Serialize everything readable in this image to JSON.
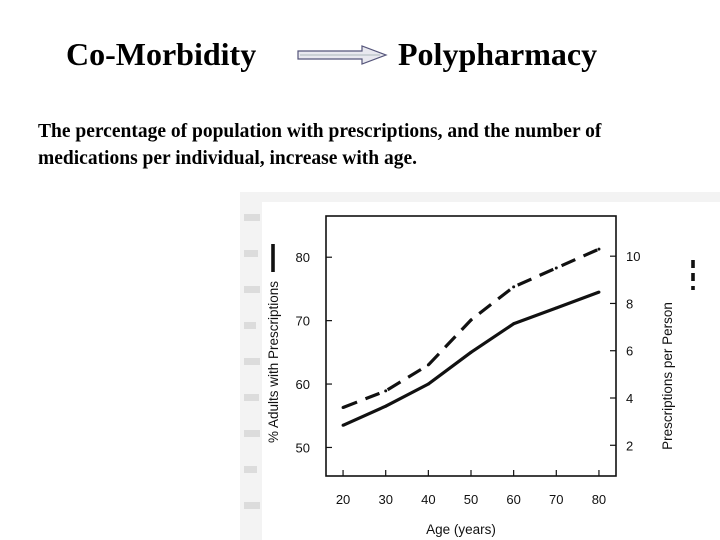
{
  "header": {
    "left_title": "Co-Morbidity",
    "right_title": "Polypharmacy",
    "arrow_icon": "right-arrow-icon"
  },
  "subtitle": "The percentage of population with prescriptions, and the number of medications per individual, increase with age.",
  "chart_data": {
    "type": "line",
    "x": [
      20,
      30,
      40,
      50,
      60,
      70,
      80
    ],
    "xlabel": "Age (years)",
    "xlim": [
      16,
      84
    ],
    "xticks": [
      "20",
      "30",
      "40",
      "50",
      "60",
      "70",
      "80"
    ],
    "left_axis": {
      "label": "% Adults with Prescriptions",
      "ylim": [
        45.5,
        86.5
      ],
      "ticks": [
        "50",
        "60",
        "70",
        "80"
      ],
      "tick_values": [
        50,
        60,
        70,
        80
      ]
    },
    "right_axis": {
      "label": "Prescriptions per Person",
      "ylim": [
        0.7,
        11.7
      ],
      "ticks": [
        "2",
        "4",
        "6",
        "8",
        "10"
      ],
      "tick_values": [
        2,
        4,
        6,
        8,
        10
      ]
    },
    "series": [
      {
        "name": "% Adults with Prescriptions",
        "axis": "left",
        "style": "solid",
        "values": [
          53.5,
          56.5,
          60,
          65,
          69.5,
          72,
          74.5
        ]
      },
      {
        "name": "Prescriptions per Person",
        "axis": "right",
        "style": "dashed",
        "values": [
          3.6,
          4.3,
          5.4,
          7.3,
          8.7,
          9.5,
          10.3
        ]
      }
    ],
    "legend": [
      {
        "name": "% Adults with Prescriptions",
        "style": "solid",
        "position": "left"
      },
      {
        "name": "Prescriptions per Person",
        "style": "dashed",
        "position": "right"
      }
    ],
    "grid": false
  },
  "colors": {
    "line": "#111111",
    "scan_bg": "#f3f3f3",
    "scan_text": "#dcdcdc"
  }
}
